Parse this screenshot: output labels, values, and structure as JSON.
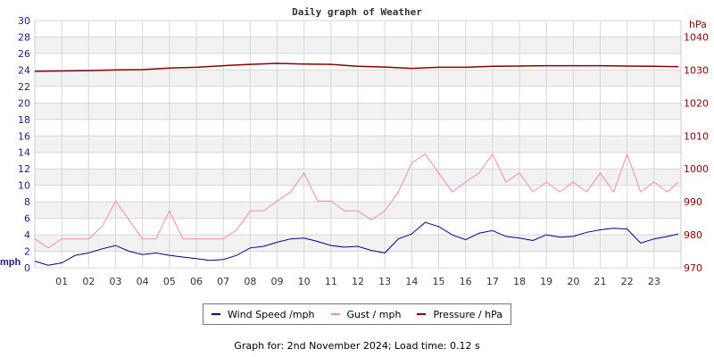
{
  "chart_data": {
    "type": "line",
    "title": "Daily graph of Weather",
    "left_axis": {
      "unit": "mph",
      "ylim": [
        0,
        30
      ],
      "ticks": [
        "0",
        "2",
        "4",
        "6",
        "8",
        "10",
        "12",
        "14",
        "16",
        "18",
        "20",
        "22",
        "24",
        "26",
        "28",
        "30"
      ],
      "color": "#1a1a8c"
    },
    "right_axis": {
      "unit": "hPa",
      "ylim": [
        970,
        1045
      ],
      "ticks": [
        "970",
        "980",
        "990",
        "1000",
        "1010",
        "1020",
        "1030",
        "1040"
      ],
      "color": "#8b0000"
    },
    "x_ticks": [
      "01",
      "02",
      "03",
      "04",
      "05",
      "06",
      "07",
      "08",
      "09",
      "10",
      "11",
      "12",
      "13",
      "14",
      "15",
      "16",
      "17",
      "18",
      "19",
      "20",
      "21",
      "22",
      "23"
    ],
    "xlim": [
      0,
      24
    ],
    "grid": true,
    "legend_placement": "bottom",
    "series": [
      {
        "name": "Wind Speed /mph",
        "axis": "left",
        "color": "#00008b",
        "x": [
          0,
          0.5,
          1,
          1.5,
          2,
          2.5,
          3,
          3.5,
          4,
          4.5,
          5,
          5.5,
          6,
          6.5,
          7,
          7.5,
          8,
          8.5,
          9,
          9.5,
          10,
          10.5,
          11,
          11.5,
          12,
          12.5,
          13,
          13.5,
          14,
          14.5,
          15,
          15.5,
          16,
          16.5,
          17,
          17.5,
          18,
          18.5,
          19,
          19.5,
          20,
          20.5,
          21,
          21.5,
          22,
          22.5,
          23,
          23.5,
          23.9
        ],
        "values": [
          0.8,
          0.3,
          0.6,
          1.5,
          1.8,
          2.3,
          2.7,
          2.0,
          1.6,
          1.8,
          1.5,
          1.3,
          1.1,
          0.9,
          1.0,
          1.5,
          2.4,
          2.6,
          3.1,
          3.5,
          3.6,
          3.2,
          2.7,
          2.5,
          2.6,
          2.1,
          1.8,
          3.5,
          4.1,
          5.5,
          5.0,
          4.0,
          3.4,
          4.2,
          4.5,
          3.8,
          3.6,
          3.3,
          4.0,
          3.7,
          3.8,
          4.3,
          4.6,
          4.8,
          4.7,
          3.0,
          3.5,
          3.8,
          4.1
        ]
      },
      {
        "name": "Gust / mph",
        "axis": "left",
        "color": "#ff88aa",
        "x": [
          0,
          0.5,
          1,
          1.5,
          2,
          2.5,
          3,
          3.5,
          4,
          4.5,
          5,
          5.5,
          6,
          6.5,
          7,
          7.5,
          8,
          8.5,
          9,
          9.5,
          10,
          10.5,
          11,
          11.5,
          12,
          12.5,
          13,
          13.5,
          14,
          14.5,
          15,
          15.5,
          16,
          16.5,
          17,
          17.5,
          18,
          18.5,
          19,
          19.5,
          20,
          20.5,
          21,
          21.5,
          22,
          22.5,
          23,
          23.5,
          23.9
        ],
        "values": [
          3.5,
          2.4,
          3.5,
          3.5,
          3.5,
          5.0,
          8.1,
          5.8,
          3.5,
          3.5,
          6.9,
          3.5,
          3.5,
          3.5,
          3.5,
          4.6,
          6.9,
          6.9,
          8.1,
          9.2,
          11.5,
          8.1,
          8.1,
          6.9,
          6.9,
          5.8,
          6.9,
          9.2,
          12.7,
          13.8,
          11.5,
          9.2,
          10.4,
          11.5,
          13.8,
          10.4,
          11.5,
          9.2,
          10.4,
          9.2,
          10.4,
          9.2,
          11.5,
          9.2,
          13.8,
          9.2,
          10.4,
          9.2,
          10.4
        ]
      },
      {
        "name": "Pressure / hPa",
        "axis": "right",
        "color": "#8b0000",
        "x": [
          0,
          1,
          2,
          3,
          4,
          5,
          6,
          7,
          8,
          9,
          10,
          11,
          12,
          13,
          14,
          15,
          16,
          17,
          18,
          19,
          20,
          21,
          22,
          23,
          23.9
        ],
        "values": [
          1029.6,
          1029.7,
          1029.8,
          1030.0,
          1030.1,
          1030.6,
          1030.8,
          1031.3,
          1031.7,
          1032.0,
          1031.8,
          1031.7,
          1031.1,
          1030.9,
          1030.5,
          1030.8,
          1030.8,
          1031.1,
          1031.2,
          1031.3,
          1031.3,
          1031.3,
          1031.2,
          1031.1,
          1031.0
        ]
      }
    ]
  },
  "legend": {
    "wind": "Wind Speed /mph",
    "gust": "Gust / mph",
    "pressure": "Pressure / hPa"
  },
  "footer": "Graph for: 2nd November 2024; Load time: 0.12 s"
}
